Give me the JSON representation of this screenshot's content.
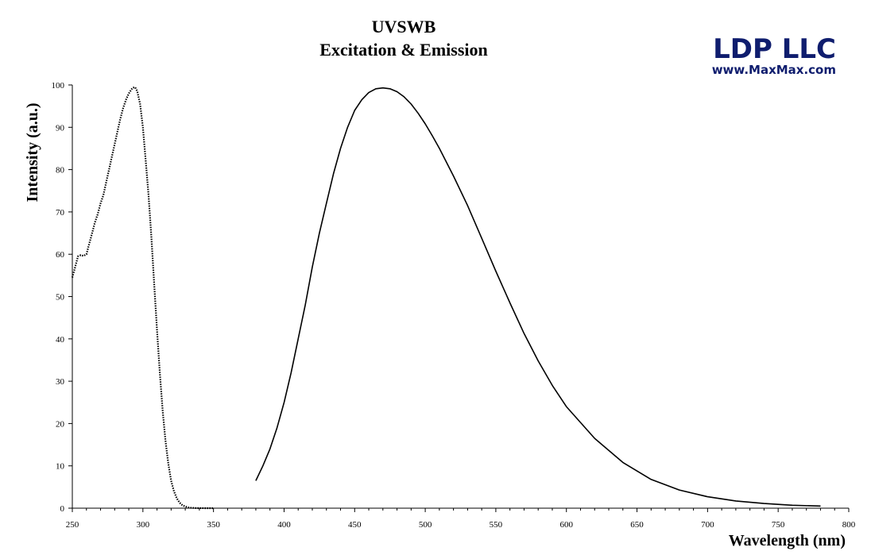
{
  "logo": {
    "name": "LDP LLC",
    "website": "www.MaxMax.com",
    "color": "#0f1d6e"
  },
  "chart_data": {
    "type": "line",
    "title": "UVSWB",
    "subtitle": "Excitation & Emission",
    "xlabel": "Wavelength (nm)",
    "ylabel": "Intensity (a.u.)",
    "xlim": [
      250,
      800
    ],
    "ylim": [
      0,
      100
    ],
    "x_ticks": [
      250,
      300,
      350,
      400,
      450,
      500,
      550,
      600,
      650,
      700,
      750,
      800
    ],
    "y_ticks": [
      0,
      10,
      20,
      30,
      40,
      50,
      60,
      70,
      80,
      90,
      100
    ],
    "grid": false,
    "legend": "none",
    "series": [
      {
        "style": "dotted",
        "color": "#000000",
        "x": [
          250,
          252,
          254,
          256,
          258,
          260,
          262,
          264,
          266,
          268,
          270,
          272,
          274,
          276,
          278,
          280,
          282,
          284,
          286,
          288,
          290,
          292,
          293,
          294,
          295,
          296,
          298,
          300,
          302,
          304,
          306,
          308,
          310,
          312,
          314,
          316,
          318,
          320,
          322,
          324,
          326,
          328,
          330,
          332,
          334,
          336,
          338,
          340,
          345,
          350
        ],
        "y": [
          54.5,
          57,
          59.5,
          59.8,
          59.6,
          60,
          62.5,
          65,
          67.5,
          69.5,
          72,
          74,
          77,
          80,
          83,
          86,
          89,
          92,
          94.5,
          96.5,
          98,
          99,
          99.3,
          99.5,
          99.2,
          98.5,
          95.5,
          90,
          82,
          74,
          64,
          53,
          42,
          32,
          23,
          16,
          10.5,
          6.5,
          4,
          2.3,
          1.3,
          0.7,
          0.4,
          0.2,
          0.1,
          0.05,
          0.02,
          0.01,
          0,
          0
        ]
      },
      {
        "style": "solid",
        "color": "#000000",
        "x": [
          380,
          385,
          390,
          395,
          400,
          405,
          410,
          415,
          420,
          425,
          430,
          435,
          440,
          445,
          450,
          455,
          460,
          465,
          470,
          475,
          480,
          485,
          490,
          495,
          500,
          505,
          510,
          520,
          530,
          540,
          550,
          560,
          570,
          580,
          590,
          600,
          620,
          640,
          660,
          680,
          700,
          720,
          740,
          760,
          780
        ],
        "y": [
          6.5,
          10,
          14,
          19,
          25,
          32,
          40,
          48,
          57,
          65,
          72,
          79,
          85,
          90,
          94,
          96.5,
          98.2,
          99.1,
          99.3,
          99.1,
          98.4,
          97.2,
          95.5,
          93.3,
          90.8,
          88,
          85,
          78.5,
          71.5,
          63.8,
          56,
          48.5,
          41.3,
          34.8,
          29,
          24,
          16.5,
          10.8,
          6.8,
          4.3,
          2.7,
          1.7,
          1.1,
          0.7,
          0.5
        ]
      }
    ]
  }
}
